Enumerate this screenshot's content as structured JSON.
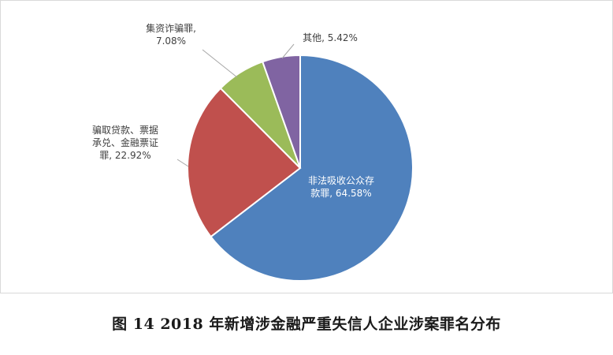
{
  "caption": "图 14    2018 年新增涉金融严重失信人企业涉案罪名分布",
  "chart_data": {
    "type": "pie",
    "title": "",
    "slices": [
      {
        "name": "非法吸收公众存款罪",
        "value": 64.58,
        "label_lines": [
          "非法吸收公众存",
          "款罪, 64.58%"
        ],
        "color": "#4F81BD"
      },
      {
        "name": "骗取贷款、票据承兑、金融票证罪",
        "value": 22.92,
        "label_lines": [
          "骗取贷款、票据",
          "承兑、金融票证",
          "罪, 22.92%"
        ],
        "color": "#C0504D"
      },
      {
        "name": "集资诈骗罪",
        "value": 7.08,
        "label_lines": [
          "集资诈骗罪,",
          "7.08%"
        ],
        "color": "#9BBB59"
      },
      {
        "name": "其他",
        "value": 5.42,
        "label_lines": [
          "其他, 5.42%"
        ],
        "color": "#8064A2"
      }
    ],
    "start_angle_deg": 0,
    "direction": "clockwise",
    "legend": "none",
    "labels": "data-callouts"
  }
}
